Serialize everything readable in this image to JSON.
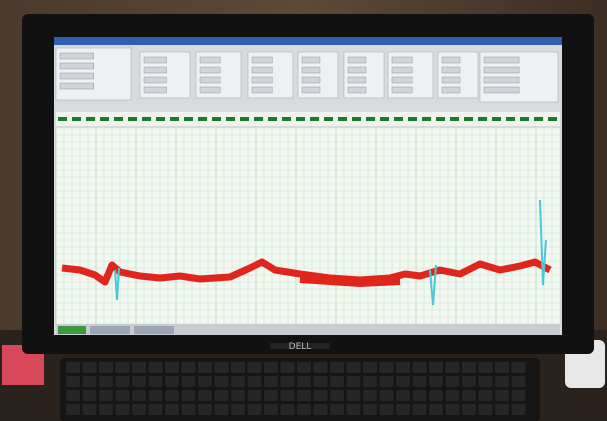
{
  "monitor": {
    "brand": "DELL"
  }
}
